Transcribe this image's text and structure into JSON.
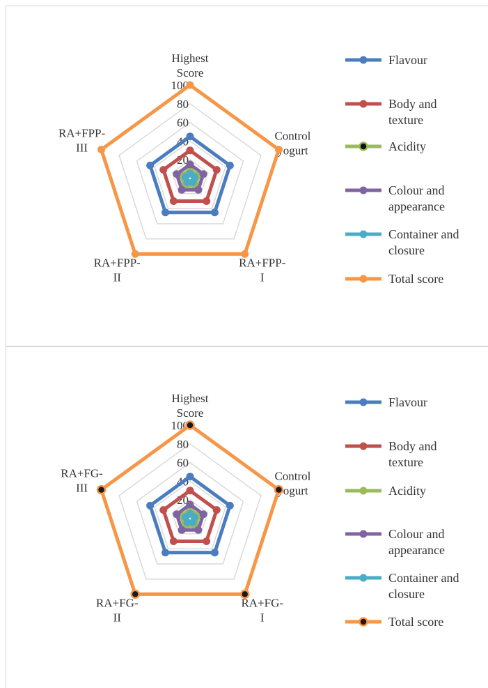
{
  "colors": {
    "Flavour": "#4a7cbf",
    "Body and texture": "#c0504d",
    "Acidity": "#9bbb59",
    "Colour and appearance": "#8064a2",
    "Container and closure": "#4bacc6",
    "Total score": "#f79646",
    "grid": "#d9d9d9"
  },
  "chart_data": [
    {
      "type": "radar",
      "title": "",
      "categories": [
        [
          "Highest",
          "Score"
        ],
        [
          "Control",
          "yogurt"
        ],
        [
          "RA+FPP-",
          "I"
        ],
        [
          "RA+FPP-",
          "II"
        ],
        [
          "RA+FPP-",
          "III"
        ]
      ],
      "rlim": [
        0,
        100
      ],
      "ticks": [
        "0",
        "20",
        "40",
        "60",
        "80",
        "100"
      ],
      "grid": true,
      "legend": "right",
      "series": [
        {
          "name": "Flavour",
          "label_lines": [
            "Flavour"
          ],
          "values": [
            45,
            45,
            45,
            45,
            45
          ]
        },
        {
          "name": "Body and texture",
          "label_lines": [
            "Body and",
            "texture"
          ],
          "values": [
            30,
            30,
            30,
            30,
            30
          ]
        },
        {
          "name": "Acidity",
          "label_lines": [
            "Acidity"
          ],
          "values": [
            10,
            10,
            10,
            10,
            10
          ]
        },
        {
          "name": "Colour and appearance",
          "label_lines": [
            "Colour and",
            "appearance"
          ],
          "values": [
            15,
            15,
            15,
            15,
            15
          ]
        },
        {
          "name": "Container and closure",
          "label_lines": [
            "Container and",
            "closure"
          ],
          "values": [
            5,
            5,
            5,
            5,
            5
          ]
        },
        {
          "name": "Total score",
          "label_lines": [
            "Total score"
          ],
          "values": [
            100,
            100,
            100,
            100,
            100
          ]
        }
      ]
    },
    {
      "type": "radar",
      "title": "",
      "categories": [
        [
          "Highest",
          "Score"
        ],
        [
          "Control",
          "yogurt"
        ],
        [
          "RA+FG-",
          "I"
        ],
        [
          "RA+FG-",
          "II"
        ],
        [
          "RA+FG-",
          "III"
        ]
      ],
      "rlim": [
        0,
        100
      ],
      "ticks": [
        "0",
        "20",
        "40",
        "60",
        "80",
        "100"
      ],
      "grid": true,
      "legend": "right",
      "series": [
        {
          "name": "Flavour",
          "label_lines": [
            "Flavour"
          ],
          "values": [
            45,
            45,
            45,
            45,
            45
          ]
        },
        {
          "name": "Body and texture",
          "label_lines": [
            "Body and",
            "texture"
          ],
          "values": [
            30,
            30,
            30,
            30,
            30
          ]
        },
        {
          "name": "Acidity",
          "label_lines": [
            "Acidity"
          ],
          "values": [
            10,
            10,
            10,
            10,
            10
          ]
        },
        {
          "name": "Colour and appearance",
          "label_lines": [
            "Colour and",
            "appearance"
          ],
          "values": [
            15,
            15,
            15,
            15,
            15
          ]
        },
        {
          "name": "Container and closure",
          "label_lines": [
            "Container and",
            "closure"
          ],
          "values": [
            5,
            5,
            5,
            5,
            5
          ]
        },
        {
          "name": "Total score",
          "label_lines": [
            "Total score"
          ],
          "values": [
            100,
            100,
            100,
            100,
            100
          ]
        }
      ]
    }
  ]
}
